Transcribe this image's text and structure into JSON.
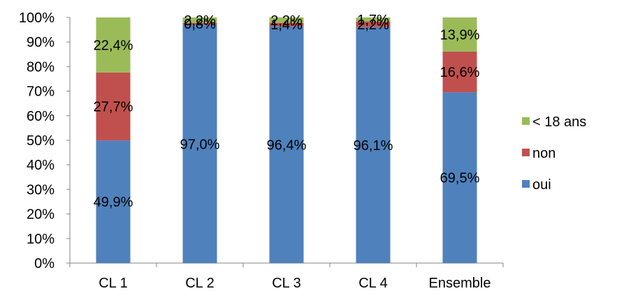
{
  "chart_data": {
    "type": "bar",
    "stacked": true,
    "percent": true,
    "categories": [
      "CL 1",
      "CL 2",
      "CL 3",
      "CL 4",
      "Ensemble"
    ],
    "ylim": [
      0,
      100
    ],
    "y_ticks": [
      "0%",
      "10%",
      "20%",
      "30%",
      "40%",
      "50%",
      "60%",
      "70%",
      "80%",
      "90%",
      "100%"
    ],
    "grid": false,
    "legend_position": "right",
    "series": [
      {
        "name": "oui",
        "color": "#4F81BD",
        "values": [
          49.9,
          97.0,
          96.4,
          96.1,
          69.5
        ],
        "labels": [
          "49,9%",
          "97,0%",
          "96,4%",
          "96,1%",
          "69,5%"
        ]
      },
      {
        "name": "non",
        "color": "#C0504D",
        "values": [
          27.7,
          0.8,
          1.4,
          2.2,
          16.6
        ],
        "labels": [
          "27,7%",
          "0,8%",
          "1,4%",
          "2,2%",
          "16,6%"
        ]
      },
      {
        "name": "< 18 ans",
        "color": "#9BBB59",
        "values": [
          22.4,
          2.2,
          2.2,
          1.7,
          13.9
        ],
        "labels": [
          "22,4%",
          "2,2%",
          "2,2%",
          "1,7%",
          "13,9%"
        ]
      }
    ],
    "legend_order": [
      "< 18 ans",
      "non",
      "oui"
    ]
  }
}
